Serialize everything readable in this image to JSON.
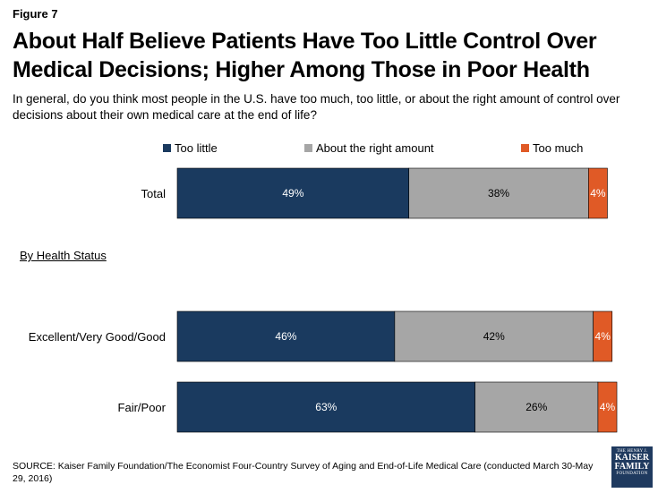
{
  "figure_label": "Figure 7",
  "title": "About Half Believe Patients Have Too Little Control Over Medical Decisions; Higher Among Those in Poor Health",
  "subtitle": "In general, do you think most people in the U.S. have too much, too little, or about the right amount of control over decisions about their own medical care at the end of life?",
  "group_label": "By Health Status",
  "source": "SOURCE: Kaiser Family Foundation/The Economist Four-Country Survey of Aging and End-of-Life Medical Care (conducted March 30-May 29, 2016)",
  "logo": {
    "line1": "THE HENRY J.",
    "line2": "KAISER",
    "line3": "FAMILY",
    "line4": "FOUNDATION"
  },
  "chart_data": {
    "type": "bar",
    "orientation": "horizontal",
    "stacked": true,
    "unit": "%",
    "xlim": [
      0,
      100
    ],
    "grid": false,
    "legend_position": "top",
    "categories": [
      "Total",
      "Excellent/Very Good/Good",
      "Fair/Poor"
    ],
    "series": [
      {
        "name": "Too little",
        "color": "#1a3a5f",
        "label_color": "#ffffff",
        "values": [
          49,
          46,
          63
        ]
      },
      {
        "name": "About the right amount",
        "color": "#a6a6a6",
        "label_color": "#000000",
        "values": [
          38,
          42,
          26
        ]
      },
      {
        "name": "Too much",
        "color": "#e05a26",
        "label_color": "#ffffff",
        "values": [
          4,
          4,
          4
        ]
      }
    ]
  }
}
